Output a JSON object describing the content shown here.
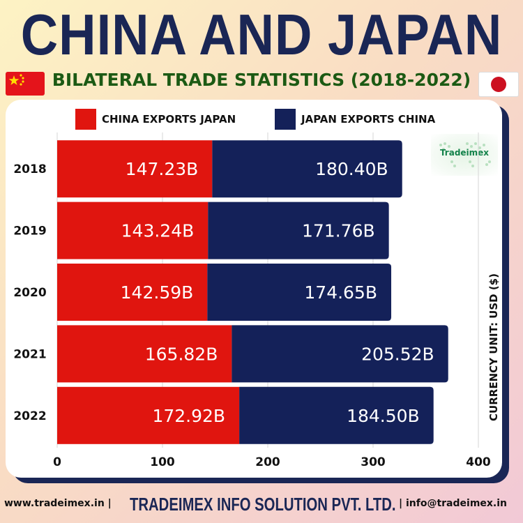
{
  "header": {
    "title": "CHINA AND JAPAN",
    "subtitle": "BILATERAL TRADE STATISTICS (2018-2022)"
  },
  "logo": {
    "text": "Tradeimex"
  },
  "unit_label": "CURRENCY UNIT: USD ($)",
  "footer": {
    "website": "www.tradeimex.in |",
    "company": "TRADEIMEX INFO SOLUTION PVT. LTD.",
    "email": "| info@tradeimex.in"
  },
  "colors": {
    "china": "#e0150f",
    "japan": "#142159",
    "title": "#1a2655",
    "subtitle": "#1c5a14"
  },
  "chart_data": {
    "type": "bar",
    "orientation": "horizontal",
    "stacked": true,
    "title": "CHINA AND JAPAN",
    "subtitle": "BILATERAL TRADE STATISTICS (2018-2022)",
    "categories": [
      "2018",
      "2019",
      "2020",
      "2021",
      "2022"
    ],
    "series": [
      {
        "name": "CHINA EXPORTS JAPAN",
        "color": "#e0150f",
        "values": [
          147.23,
          143.24,
          142.59,
          165.82,
          172.92
        ],
        "labels": [
          "147.23B",
          "143.24B",
          "142.59B",
          "165.82B",
          "172.92B"
        ]
      },
      {
        "name": "JAPAN EXPORTS CHINA",
        "color": "#142159",
        "values": [
          180.4,
          171.76,
          174.65,
          205.52,
          184.5
        ],
        "labels": [
          "180.40B",
          "171.76B",
          "174.65B",
          "205.52B",
          "184.50B"
        ]
      }
    ],
    "x_ticks": [
      "0",
      "100",
      "200",
      "300",
      "400"
    ],
    "xlim": [
      0,
      400
    ],
    "ylabel": "CURRENCY UNIT: USD ($)",
    "grid": true,
    "legend": "top"
  }
}
